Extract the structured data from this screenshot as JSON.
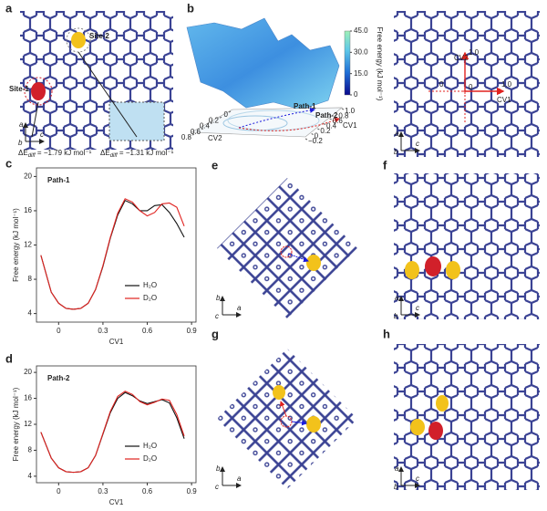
{
  "panels": {
    "a": {
      "label": "a",
      "site1": "Site-1",
      "site2": "Site-2",
      "dE1": [
        "ΔE",
        "diff",
        " = −1.79 kJ mol⁻¹"
      ],
      "dE2": [
        "ΔE",
        "diff",
        " = −1.31 kJ mol⁻¹"
      ],
      "axes": [
        "a",
        "b",
        "c"
      ]
    },
    "b": {
      "label": "b",
      "colorbar_title": "Free energy (kJ mol⁻¹)",
      "colorbar_lim": [
        0,
        45
      ],
      "colorbar_ticks": [
        0,
        {
          "value": 15,
          "label": "15.0"
        },
        {
          "value": 30,
          "label": "30.0"
        },
        {
          "value": 45,
          "label": "45.0"
        }
      ],
      "path1": "Path-1",
      "path2": "Path-2",
      "cv1": "CV1",
      "cv2": "CV2",
      "cv1_ticks": [
        {
          "value": -0.2,
          "label": "−0.2"
        },
        0,
        0.2,
        0.4,
        0.6,
        0.8,
        {
          "value": 1,
          "label": "1.0"
        }
      ],
      "cv2_ticks": [
        0.8,
        0.6,
        0.4,
        0.2,
        0
      ],
      "right": {
        "cv1": "CV1",
        "cv2": "CV2",
        "cv1_ticks": [
          0,
          {
            "value": 1,
            "label": "1.0"
          }
        ],
        "cv2_ticks": [
          0,
          {
            "value": 1,
            "label": "1.0"
          }
        ],
        "axes": [
          "a",
          "b",
          "c"
        ]
      }
    },
    "e": {
      "label": "e",
      "axes": [
        "b",
        "c",
        "a"
      ]
    },
    "f": {
      "label": "f",
      "axes": [
        "a",
        "b",
        "c"
      ]
    },
    "g": {
      "label": "g",
      "axes": [
        "b",
        "c",
        "a"
      ]
    },
    "h": {
      "label": "h",
      "axes": [
        "a",
        "b",
        "c"
      ]
    }
  },
  "chart_data": [
    {
      "type": "line",
      "panel": "c",
      "annotation": "Path-1",
      "annotation_color": "#1a1adc",
      "xlabel": "CV1",
      "ylabel": "Free energy (kJ mol⁻¹)",
      "xlim": [
        -0.15,
        0.93
      ],
      "ylim": [
        3,
        21
      ],
      "xticks": [
        0,
        0.3,
        0.6,
        0.9
      ],
      "yticks": [
        4,
        8,
        12,
        16,
        20
      ],
      "x": [
        -0.12,
        -0.05,
        0,
        0.05,
        0.1,
        0.15,
        0.2,
        0.25,
        0.3,
        0.35,
        0.4,
        0.45,
        0.5,
        0.55,
        0.6,
        0.65,
        0.7,
        0.75,
        0.8,
        0.85
      ],
      "series": [
        {
          "name": "H₂O",
          "color": "#111111",
          "values": [
            10.8,
            6.5,
            5.2,
            4.6,
            4.5,
            4.6,
            5.2,
            6.8,
            9.5,
            12.8,
            15.5,
            17.2,
            16.8,
            16.0,
            16.0,
            16.6,
            16.7,
            15.8,
            14.5,
            12.9
          ]
        },
        {
          "name": "D₂O",
          "color": "#e0221f",
          "values": [
            10.8,
            6.5,
            5.2,
            4.6,
            4.5,
            4.6,
            5.2,
            6.8,
            9.6,
            12.9,
            15.7,
            17.4,
            17.0,
            16.0,
            15.4,
            15.8,
            16.8,
            16.9,
            16.4,
            14.2
          ]
        }
      ]
    },
    {
      "type": "line",
      "panel": "d",
      "annotation": "Path-2",
      "annotation_color": "#e0221f",
      "xlabel": "CV1",
      "ylabel": "Free energy (kJ mol⁻¹)",
      "xlim": [
        -0.15,
        0.93
      ],
      "ylim": [
        3,
        21
      ],
      "xticks": [
        0,
        0.3,
        0.6,
        0.9
      ],
      "yticks": [
        4,
        8,
        12,
        16,
        20
      ],
      "x": [
        -0.12,
        -0.05,
        0,
        0.05,
        0.1,
        0.15,
        0.2,
        0.25,
        0.3,
        0.35,
        0.4,
        0.45,
        0.5,
        0.55,
        0.6,
        0.65,
        0.7,
        0.75,
        0.8,
        0.85
      ],
      "series": [
        {
          "name": "H₂O",
          "color": "#111111",
          "values": [
            10.8,
            6.8,
            5.3,
            4.7,
            4.6,
            4.7,
            5.3,
            7.2,
            10.5,
            13.8,
            16.0,
            16.9,
            16.4,
            15.6,
            15.2,
            15.5,
            15.8,
            15.3,
            13.0,
            9.8
          ]
        },
        {
          "name": "D₂O",
          "color": "#e0221f",
          "values": [
            10.8,
            6.8,
            5.3,
            4.7,
            4.6,
            4.7,
            5.3,
            7.2,
            10.6,
            14.0,
            16.3,
            17.1,
            16.6,
            15.5,
            15.0,
            15.4,
            15.9,
            15.7,
            13.5,
            10.2
          ]
        }
      ]
    }
  ]
}
